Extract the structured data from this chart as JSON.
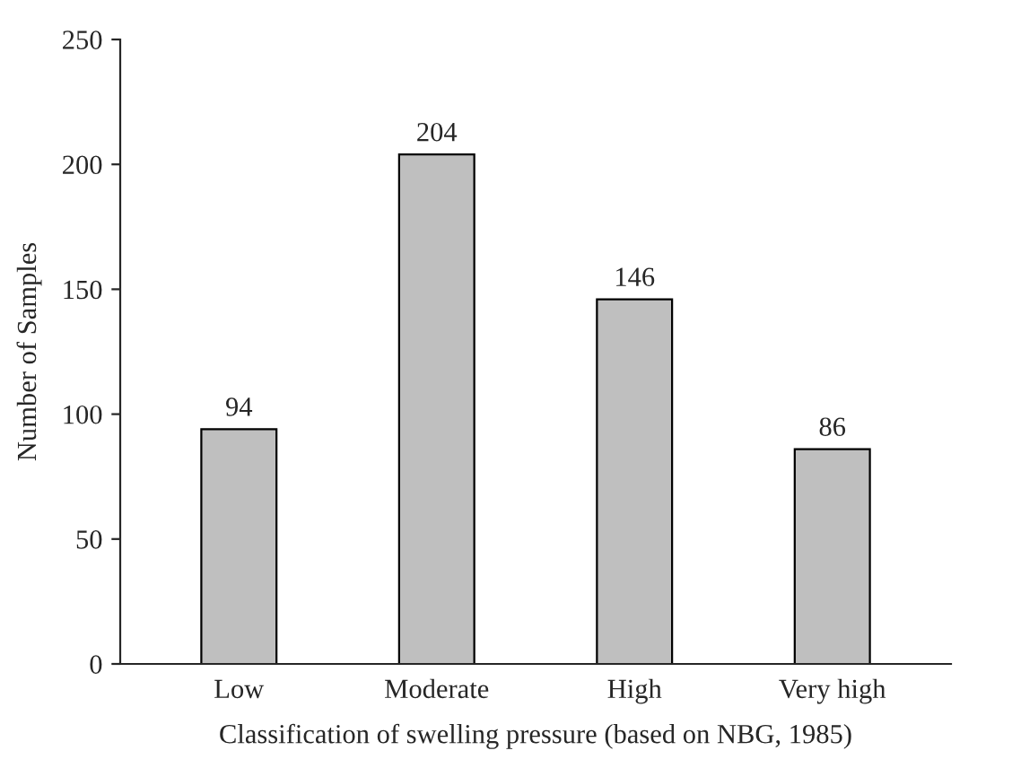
{
  "chart_data": {
    "type": "bar",
    "xlabel": "Classification of swelling pressure (based on NBG, 1985)",
    "ylabel": "Number of Samples",
    "categories": [
      "Low",
      "Moderate",
      "High",
      "Very high"
    ],
    "values": [
      94,
      204,
      146,
      86
    ],
    "color": "#bfbfbf",
    "ylim": [
      0,
      250
    ],
    "yticks": [
      0,
      50,
      100,
      150,
      200,
      250
    ],
    "data_labels": true,
    "grid": false
  }
}
